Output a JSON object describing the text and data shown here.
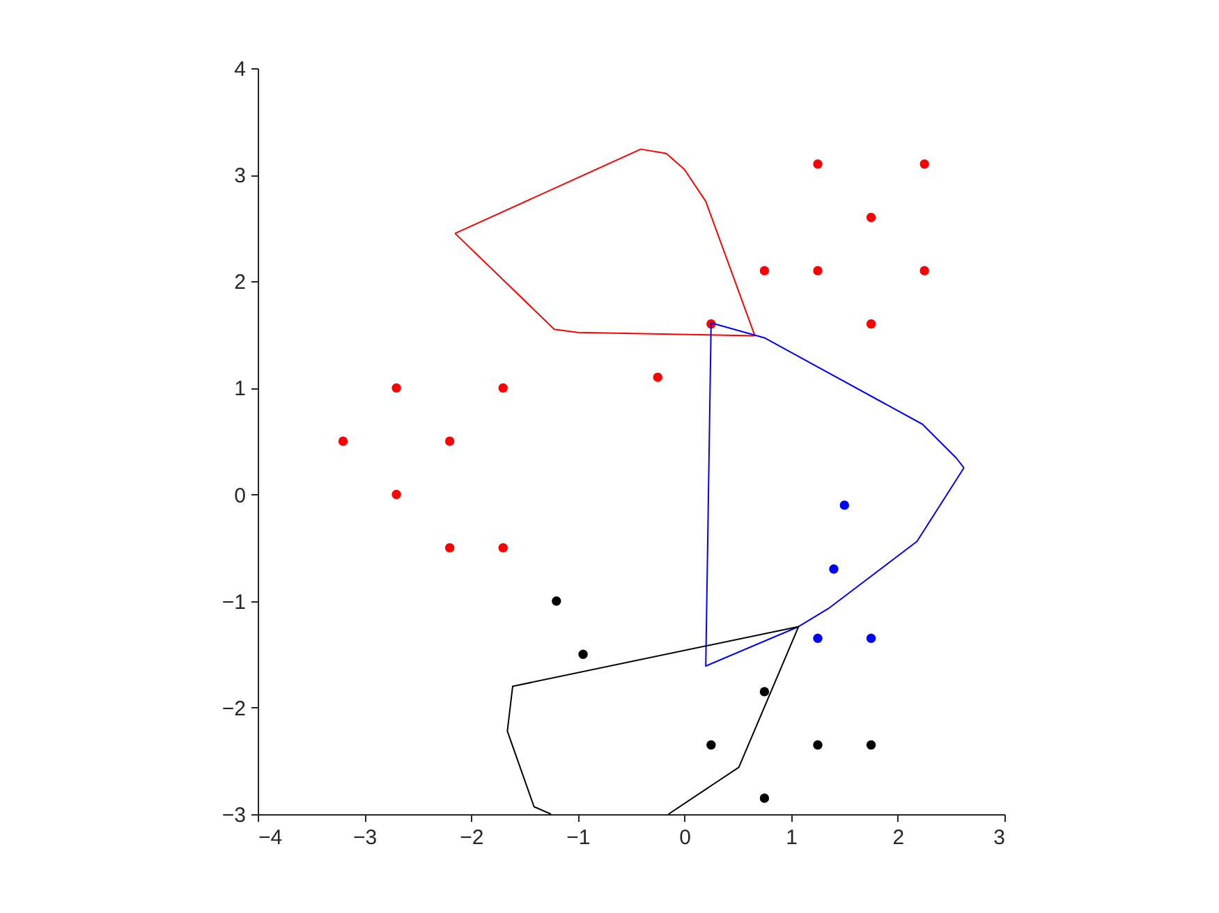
{
  "chart_data": {
    "type": "scatter",
    "xlim": [
      -4,
      3
    ],
    "ylim": [
      -3,
      4
    ],
    "xticks": [
      -4,
      -3,
      -2,
      -1,
      0,
      1,
      2,
      3
    ],
    "yticks": [
      -3,
      -2,
      -1,
      0,
      1,
      2,
      3,
      4
    ],
    "grid": false,
    "marker": "circle",
    "series": [
      {
        "type": "scatter",
        "color": "#ff0000",
        "x": [
          1.25,
          2.25,
          1.75,
          0.75,
          1.25,
          2.25,
          1.75,
          0.25,
          -0.25,
          -2.7,
          -1.7,
          -3.2,
          -2.2,
          -2.7,
          -2.2,
          -1.7
        ],
        "values": [
          3.1,
          3.1,
          2.6,
          2.1,
          2.1,
          2.1,
          1.6,
          1.6,
          1.1,
          1.0,
          1.0,
          0.5,
          0.5,
          0,
          -0.5,
          -0.5
        ]
      },
      {
        "type": "scatter",
        "color": "#0000ff",
        "x": [
          1.5,
          1.4,
          1.25,
          1.75
        ],
        "values": [
          -0.1,
          -0.7,
          -1.35,
          -1.35
        ]
      },
      {
        "type": "scatter",
        "color": "#000000",
        "x": [
          -1.2,
          -0.95,
          0.75,
          0.25,
          1.25,
          1.75,
          0.75
        ],
        "values": [
          -1.0,
          -1.5,
          -1.85,
          -2.35,
          -2.35,
          -2.35,
          -2.85
        ]
      },
      {
        "type": "line",
        "color": "#ff0000",
        "line_style": "solid",
        "marker": "none",
        "x": [
          -2.15,
          -0.41,
          -0.17,
          0,
          0.2,
          0.66
        ],
        "values": [
          2.45,
          3.24,
          3.2,
          3.05,
          2.75,
          1.49
        ]
      },
      {
        "type": "line",
        "color": "#ff0000",
        "line_style": "solid",
        "marker": "none",
        "x": [
          0.66,
          -1.0,
          -1.22,
          -2.15
        ],
        "values": [
          1.49,
          1.52,
          1.55,
          2.45
        ]
      },
      {
        "type": "line",
        "color": "#0000ff",
        "line_style": "solid",
        "marker": "none",
        "x": [
          0.25,
          0.75,
          2.23,
          2.55,
          2.62
        ],
        "values": [
          1.61,
          1.47,
          0.66,
          0.34,
          0.25
        ]
      },
      {
        "type": "line",
        "color": "#0000ff",
        "line_style": "solid",
        "marker": "none",
        "x": [
          2.62,
          2.18,
          1.35,
          1.07,
          0.2,
          0.25
        ],
        "values": [
          0.25,
          -0.44,
          -1.07,
          -1.24,
          -1.61,
          1.61
        ]
      },
      {
        "type": "line",
        "color": "#000000",
        "line_style": "solid",
        "marker": "none",
        "x": [
          -1.25,
          -1.41,
          -1.66,
          -1.61,
          1.07,
          0.51,
          -0.15
        ],
        "values": [
          -3.0,
          -2.93,
          -2.22,
          -1.8,
          -1.24,
          -2.56,
          -3.0
        ]
      }
    ]
  }
}
